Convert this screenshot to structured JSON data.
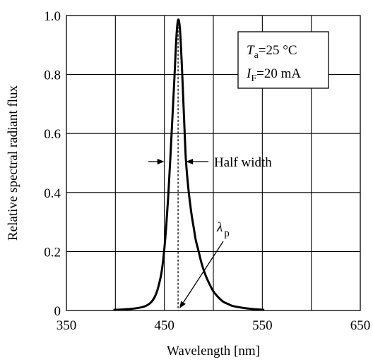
{
  "chart_data": {
    "type": "line",
    "title": "",
    "xlabel": "Wavelength [nm]",
    "ylabel": "Relative spectral radiant flux",
    "xlim": [
      350,
      650
    ],
    "ylim": [
      0,
      1.0
    ],
    "x_ticks": [
      350,
      450,
      550,
      650
    ],
    "x_tick_labels": [
      "350",
      "450",
      "550",
      "650"
    ],
    "x_gridlines": [
      400,
      450,
      500,
      550,
      600
    ],
    "y_ticks": [
      0,
      0.2,
      0.4,
      0.6,
      0.8,
      1.0
    ],
    "y_tick_labels": [
      "0",
      "0.2",
      "0.4",
      "0.6",
      "0.8",
      "1.0"
    ],
    "grid": true,
    "series": [
      {
        "x": [
          398,
          410,
          420,
          430,
          437,
          442,
          446,
          448,
          450,
          452,
          454,
          456,
          458,
          460,
          461,
          462,
          463,
          464,
          465,
          466,
          467,
          468,
          469,
          470,
          471,
          472,
          474,
          476,
          478,
          480,
          482,
          485,
          488,
          492,
          496,
          500,
          505,
          510,
          515,
          520,
          530,
          540,
          552
        ],
        "y": [
          0.002,
          0.004,
          0.007,
          0.014,
          0.03,
          0.06,
          0.11,
          0.15,
          0.21,
          0.29,
          0.39,
          0.51,
          0.64,
          0.77,
          0.84,
          0.91,
          0.96,
          0.985,
          0.98,
          0.95,
          0.89,
          0.82,
          0.74,
          0.66,
          0.58,
          0.51,
          0.43,
          0.37,
          0.32,
          0.28,
          0.24,
          0.2,
          0.16,
          0.12,
          0.09,
          0.065,
          0.045,
          0.03,
          0.022,
          0.015,
          0.009,
          0.005,
          0.002
        ]
      }
    ],
    "peak_wavelength": 464,
    "half_width_bounds": [
      450,
      472
    ],
    "annotations": {
      "conditions": {
        "ta_symbol": "T",
        "ta_subscript": "a",
        "ta_value": "=25 °C",
        "if_symbol": "I",
        "if_subscript": "F",
        "if_value": "=20 mA"
      },
      "half_width": "Half width",
      "peak_symbol": "λ",
      "peak_subscript": "p"
    }
  }
}
